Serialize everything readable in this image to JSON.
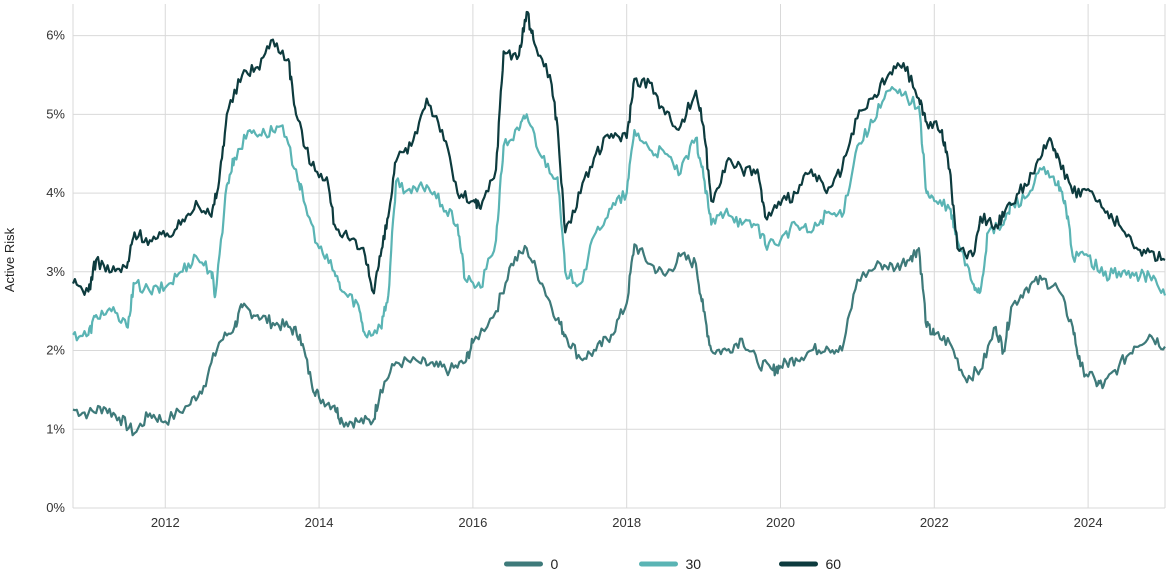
{
  "chart_data": {
    "type": "line",
    "title": "",
    "xlabel": "",
    "ylabel": "Active Risk",
    "xlim": [
      2010.8,
      2025.0
    ],
    "ylim": [
      0,
      6.3
    ],
    "x_ticks": [
      {
        "value": 2012,
        "label": "2012"
      },
      {
        "value": 2014,
        "label": "2014"
      },
      {
        "value": 2016,
        "label": "2016"
      },
      {
        "value": 2018,
        "label": "2018"
      },
      {
        "value": 2020,
        "label": "2020"
      },
      {
        "value": 2022,
        "label": "2022"
      },
      {
        "value": 2024,
        "label": "2024"
      }
    ],
    "y_ticks": [
      {
        "value": 0,
        "label": "0%"
      },
      {
        "value": 1,
        "label": "1%"
      },
      {
        "value": 2,
        "label": "2%"
      },
      {
        "value": 3,
        "label": "3%"
      },
      {
        "value": 4,
        "label": "4%"
      },
      {
        "value": 5,
        "label": "5%"
      },
      {
        "value": 6,
        "label": "6%"
      }
    ],
    "grid": true,
    "legend_position": "bottom-center",
    "series": [
      {
        "name": "0",
        "color": "#3e7a7a",
        "points": [
          [
            2010.8,
            1.25
          ],
          [
            2011.0,
            1.2
          ],
          [
            2011.2,
            1.28
          ],
          [
            2011.4,
            1.15
          ],
          [
            2011.6,
            0.95
          ],
          [
            2011.8,
            1.2
          ],
          [
            2012.0,
            1.1
          ],
          [
            2012.3,
            1.3
          ],
          [
            2012.5,
            1.55
          ],
          [
            2012.7,
            2.1
          ],
          [
            2012.9,
            2.3
          ],
          [
            2013.0,
            2.55
          ],
          [
            2013.2,
            2.45
          ],
          [
            2013.4,
            2.35
          ],
          [
            2013.6,
            2.3
          ],
          [
            2013.75,
            2.2
          ],
          [
            2013.9,
            1.6
          ],
          [
            2014.0,
            1.4
          ],
          [
            2014.2,
            1.3
          ],
          [
            2014.3,
            1.1
          ],
          [
            2014.5,
            1.1
          ],
          [
            2014.7,
            1.1
          ],
          [
            2014.8,
            1.5
          ],
          [
            2015.0,
            1.85
          ],
          [
            2015.3,
            1.85
          ],
          [
            2015.5,
            1.8
          ],
          [
            2015.7,
            1.75
          ],
          [
            2015.9,
            1.85
          ],
          [
            2016.0,
            2.1
          ],
          [
            2016.3,
            2.5
          ],
          [
            2016.5,
            3.1
          ],
          [
            2016.7,
            3.3
          ],
          [
            2016.9,
            2.85
          ],
          [
            2017.1,
            2.4
          ],
          [
            2017.2,
            2.2
          ],
          [
            2017.4,
            1.9
          ],
          [
            2017.6,
            2.0
          ],
          [
            2017.8,
            2.2
          ],
          [
            2018.0,
            2.6
          ],
          [
            2018.1,
            3.35
          ],
          [
            2018.3,
            3.1
          ],
          [
            2018.5,
            2.95
          ],
          [
            2018.7,
            3.2
          ],
          [
            2018.9,
            3.1
          ],
          [
            2019.0,
            2.5
          ],
          [
            2019.1,
            2.0
          ],
          [
            2019.3,
            2.0
          ],
          [
            2019.5,
            2.15
          ],
          [
            2019.7,
            1.85
          ],
          [
            2019.9,
            1.75
          ],
          [
            2020.0,
            1.8
          ],
          [
            2020.2,
            1.9
          ],
          [
            2020.4,
            2.0
          ],
          [
            2020.6,
            2.05
          ],
          [
            2020.8,
            2.0
          ],
          [
            2021.0,
            2.9
          ],
          [
            2021.3,
            3.1
          ],
          [
            2021.5,
            3.05
          ],
          [
            2021.7,
            3.2
          ],
          [
            2021.8,
            3.3
          ],
          [
            2021.9,
            2.3
          ],
          [
            2022.0,
            2.2
          ],
          [
            2022.2,
            2.1
          ],
          [
            2022.4,
            1.65
          ],
          [
            2022.6,
            1.75
          ],
          [
            2022.8,
            2.3
          ],
          [
            2022.9,
            2.0
          ],
          [
            2023.0,
            2.55
          ],
          [
            2023.2,
            2.8
          ],
          [
            2023.4,
            2.9
          ],
          [
            2023.6,
            2.8
          ],
          [
            2023.8,
            2.3
          ],
          [
            2023.9,
            1.8
          ],
          [
            2024.1,
            1.6
          ],
          [
            2024.2,
            1.55
          ],
          [
            2024.4,
            1.8
          ],
          [
            2024.6,
            2.05
          ],
          [
            2024.8,
            2.2
          ],
          [
            2025.0,
            2.05
          ]
        ]
      },
      {
        "name": "30",
        "color": "#5ab4b4",
        "points": [
          [
            2010.8,
            2.2
          ],
          [
            2011.0,
            2.2
          ],
          [
            2011.1,
            2.45
          ],
          [
            2011.3,
            2.5
          ],
          [
            2011.5,
            2.3
          ],
          [
            2011.6,
            2.85
          ],
          [
            2011.8,
            2.75
          ],
          [
            2012.0,
            2.8
          ],
          [
            2012.2,
            3.0
          ],
          [
            2012.4,
            3.2
          ],
          [
            2012.6,
            3.0
          ],
          [
            2012.65,
            2.7
          ],
          [
            2012.8,
            4.1
          ],
          [
            2012.9,
            4.45
          ],
          [
            2013.1,
            4.8
          ],
          [
            2013.3,
            4.75
          ],
          [
            2013.5,
            4.85
          ],
          [
            2013.7,
            4.3
          ],
          [
            2013.8,
            3.9
          ],
          [
            2014.0,
            3.3
          ],
          [
            2014.2,
            3.0
          ],
          [
            2014.3,
            2.75
          ],
          [
            2014.5,
            2.6
          ],
          [
            2014.6,
            2.2
          ],
          [
            2014.8,
            2.3
          ],
          [
            2014.9,
            2.7
          ],
          [
            2015.0,
            4.15
          ],
          [
            2015.2,
            4.0
          ],
          [
            2015.4,
            4.1
          ],
          [
            2015.6,
            3.85
          ],
          [
            2015.8,
            3.6
          ],
          [
            2015.9,
            2.9
          ],
          [
            2016.1,
            2.8
          ],
          [
            2016.3,
            3.4
          ],
          [
            2016.4,
            4.6
          ],
          [
            2016.6,
            4.8
          ],
          [
            2016.7,
            5.0
          ],
          [
            2016.9,
            4.45
          ],
          [
            2017.1,
            4.2
          ],
          [
            2017.2,
            3.0
          ],
          [
            2017.4,
            2.85
          ],
          [
            2017.6,
            3.5
          ],
          [
            2017.8,
            3.8
          ],
          [
            2018.0,
            4.0
          ],
          [
            2018.1,
            4.8
          ],
          [
            2018.3,
            4.55
          ],
          [
            2018.5,
            4.5
          ],
          [
            2018.7,
            4.25
          ],
          [
            2018.9,
            4.7
          ],
          [
            2019.0,
            4.2
          ],
          [
            2019.1,
            3.6
          ],
          [
            2019.3,
            3.8
          ],
          [
            2019.5,
            3.6
          ],
          [
            2019.7,
            3.6
          ],
          [
            2019.8,
            3.35
          ],
          [
            2020.0,
            3.4
          ],
          [
            2020.2,
            3.6
          ],
          [
            2020.4,
            3.5
          ],
          [
            2020.6,
            3.75
          ],
          [
            2020.8,
            3.7
          ],
          [
            2021.0,
            4.6
          ],
          [
            2021.2,
            4.9
          ],
          [
            2021.4,
            5.3
          ],
          [
            2021.6,
            5.25
          ],
          [
            2021.8,
            5.1
          ],
          [
            2021.9,
            4.0
          ],
          [
            2022.0,
            3.9
          ],
          [
            2022.2,
            3.8
          ],
          [
            2022.3,
            3.4
          ],
          [
            2022.5,
            2.85
          ],
          [
            2022.6,
            2.75
          ],
          [
            2022.7,
            3.5
          ],
          [
            2022.9,
            3.6
          ],
          [
            2023.0,
            3.85
          ],
          [
            2023.2,
            3.95
          ],
          [
            2023.4,
            4.3
          ],
          [
            2023.6,
            4.1
          ],
          [
            2023.7,
            3.9
          ],
          [
            2023.8,
            3.2
          ],
          [
            2024.0,
            3.2
          ],
          [
            2024.2,
            2.95
          ],
          [
            2024.4,
            3.0
          ],
          [
            2024.6,
            2.95
          ],
          [
            2024.8,
            2.95
          ],
          [
            2025.0,
            2.7
          ]
        ]
      },
      {
        "name": "60",
        "color": "#0d3b3e",
        "points": [
          [
            2010.8,
            2.85
          ],
          [
            2011.0,
            2.75
          ],
          [
            2011.1,
            3.15
          ],
          [
            2011.3,
            3.0
          ],
          [
            2011.5,
            3.05
          ],
          [
            2011.6,
            3.5
          ],
          [
            2011.8,
            3.4
          ],
          [
            2012.0,
            3.45
          ],
          [
            2012.2,
            3.6
          ],
          [
            2012.4,
            3.9
          ],
          [
            2012.6,
            3.7
          ],
          [
            2012.7,
            4.15
          ],
          [
            2012.8,
            5.0
          ],
          [
            2013.0,
            5.5
          ],
          [
            2013.2,
            5.6
          ],
          [
            2013.4,
            5.95
          ],
          [
            2013.6,
            5.7
          ],
          [
            2013.7,
            5.0
          ],
          [
            2013.9,
            4.35
          ],
          [
            2014.1,
            4.2
          ],
          [
            2014.2,
            3.6
          ],
          [
            2014.4,
            3.4
          ],
          [
            2014.6,
            3.2
          ],
          [
            2014.7,
            2.75
          ],
          [
            2014.8,
            3.2
          ],
          [
            2014.9,
            3.7
          ],
          [
            2015.0,
            4.4
          ],
          [
            2015.2,
            4.6
          ],
          [
            2015.4,
            5.2
          ],
          [
            2015.6,
            4.8
          ],
          [
            2015.8,
            4.0
          ],
          [
            2016.0,
            3.9
          ],
          [
            2016.1,
            3.8
          ],
          [
            2016.3,
            4.3
          ],
          [
            2016.4,
            5.8
          ],
          [
            2016.6,
            5.75
          ],
          [
            2016.7,
            6.3
          ],
          [
            2016.8,
            5.9
          ],
          [
            2017.0,
            5.5
          ],
          [
            2017.1,
            4.85
          ],
          [
            2017.2,
            3.5
          ],
          [
            2017.4,
            4.0
          ],
          [
            2017.6,
            4.5
          ],
          [
            2017.8,
            4.75
          ],
          [
            2018.0,
            4.7
          ],
          [
            2018.1,
            5.45
          ],
          [
            2018.3,
            5.4
          ],
          [
            2018.5,
            5.0
          ],
          [
            2018.7,
            4.85
          ],
          [
            2018.9,
            5.3
          ],
          [
            2019.0,
            4.85
          ],
          [
            2019.1,
            3.9
          ],
          [
            2019.3,
            4.4
          ],
          [
            2019.5,
            4.3
          ],
          [
            2019.7,
            4.3
          ],
          [
            2019.8,
            3.7
          ],
          [
            2020.0,
            3.85
          ],
          [
            2020.2,
            4.0
          ],
          [
            2020.4,
            4.3
          ],
          [
            2020.6,
            4.0
          ],
          [
            2020.8,
            4.3
          ],
          [
            2021.0,
            4.95
          ],
          [
            2021.2,
            5.2
          ],
          [
            2021.4,
            5.5
          ],
          [
            2021.6,
            5.65
          ],
          [
            2021.8,
            5.2
          ],
          [
            2021.9,
            4.9
          ],
          [
            2022.1,
            4.8
          ],
          [
            2022.2,
            4.3
          ],
          [
            2022.3,
            3.3
          ],
          [
            2022.5,
            3.2
          ],
          [
            2022.6,
            3.7
          ],
          [
            2022.8,
            3.6
          ],
          [
            2022.9,
            3.7
          ],
          [
            2023.1,
            4.0
          ],
          [
            2023.3,
            4.25
          ],
          [
            2023.5,
            4.7
          ],
          [
            2023.6,
            4.5
          ],
          [
            2023.8,
            4.0
          ],
          [
            2024.0,
            4.05
          ],
          [
            2024.2,
            3.8
          ],
          [
            2024.4,
            3.6
          ],
          [
            2024.6,
            3.3
          ],
          [
            2024.8,
            3.25
          ],
          [
            2025.0,
            3.15
          ]
        ]
      }
    ]
  }
}
